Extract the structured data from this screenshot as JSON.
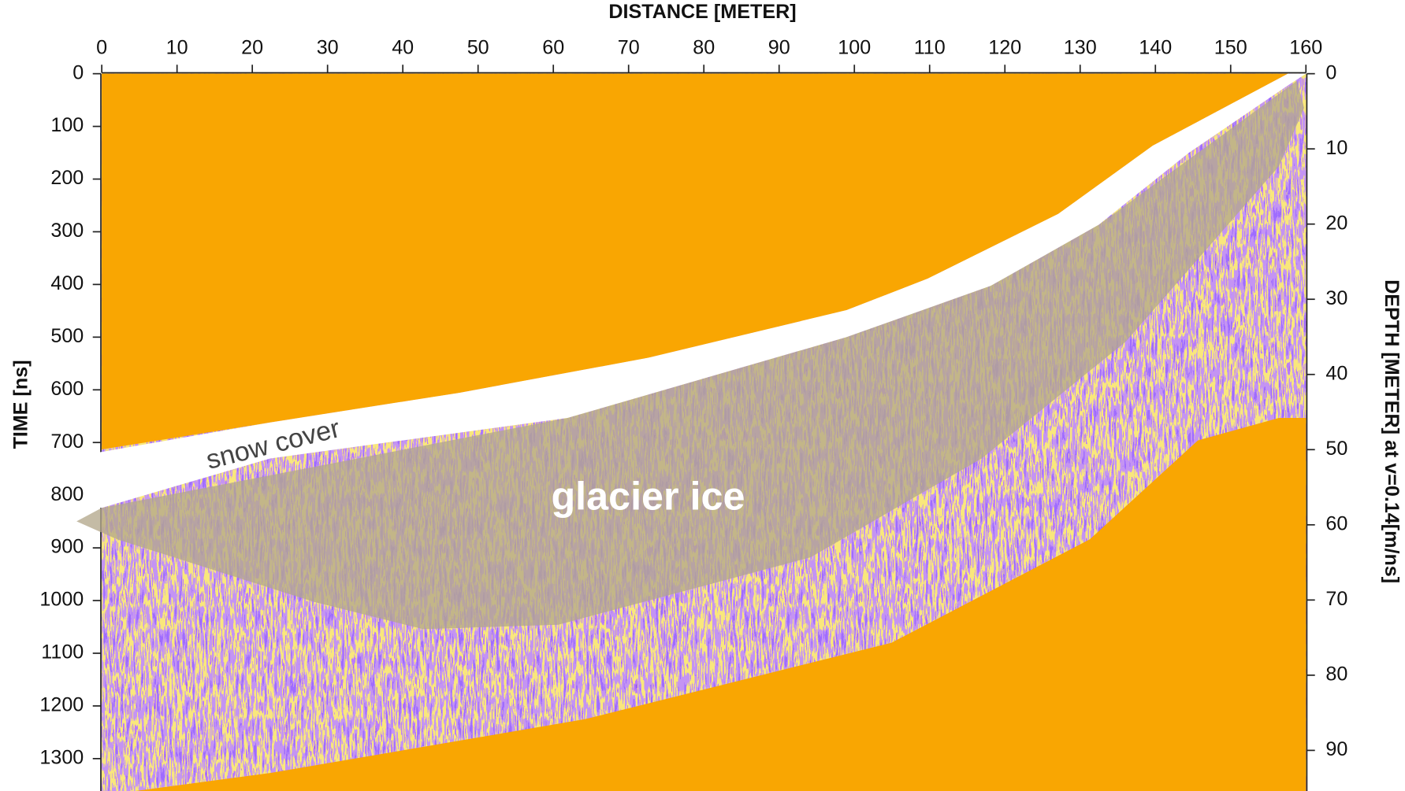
{
  "chart_data": {
    "type": "radargram",
    "title": "DISTANCE [METER]",
    "y_label": "TIME [ns]",
    "y2_label": "DEPTH [METER] at v=0.14[m/ns]",
    "annotations": [
      "snow cover",
      "glacier ice"
    ],
    "xlim": [
      0,
      160
    ],
    "xticks": [
      0,
      10,
      20,
      30,
      40,
      50,
      60,
      70,
      80,
      90,
      100,
      110,
      120,
      130,
      140,
      150,
      160
    ],
    "ylim": [
      0,
      1370
    ],
    "yticks": [
      0,
      100,
      200,
      300,
      400,
      500,
      600,
      700,
      800,
      900,
      1000,
      1100,
      1200,
      1300
    ],
    "y2lim": [
      0,
      96
    ],
    "y2ticks": [
      0,
      10,
      20,
      30,
      40,
      50,
      60,
      70,
      80,
      90
    ]
  }
}
